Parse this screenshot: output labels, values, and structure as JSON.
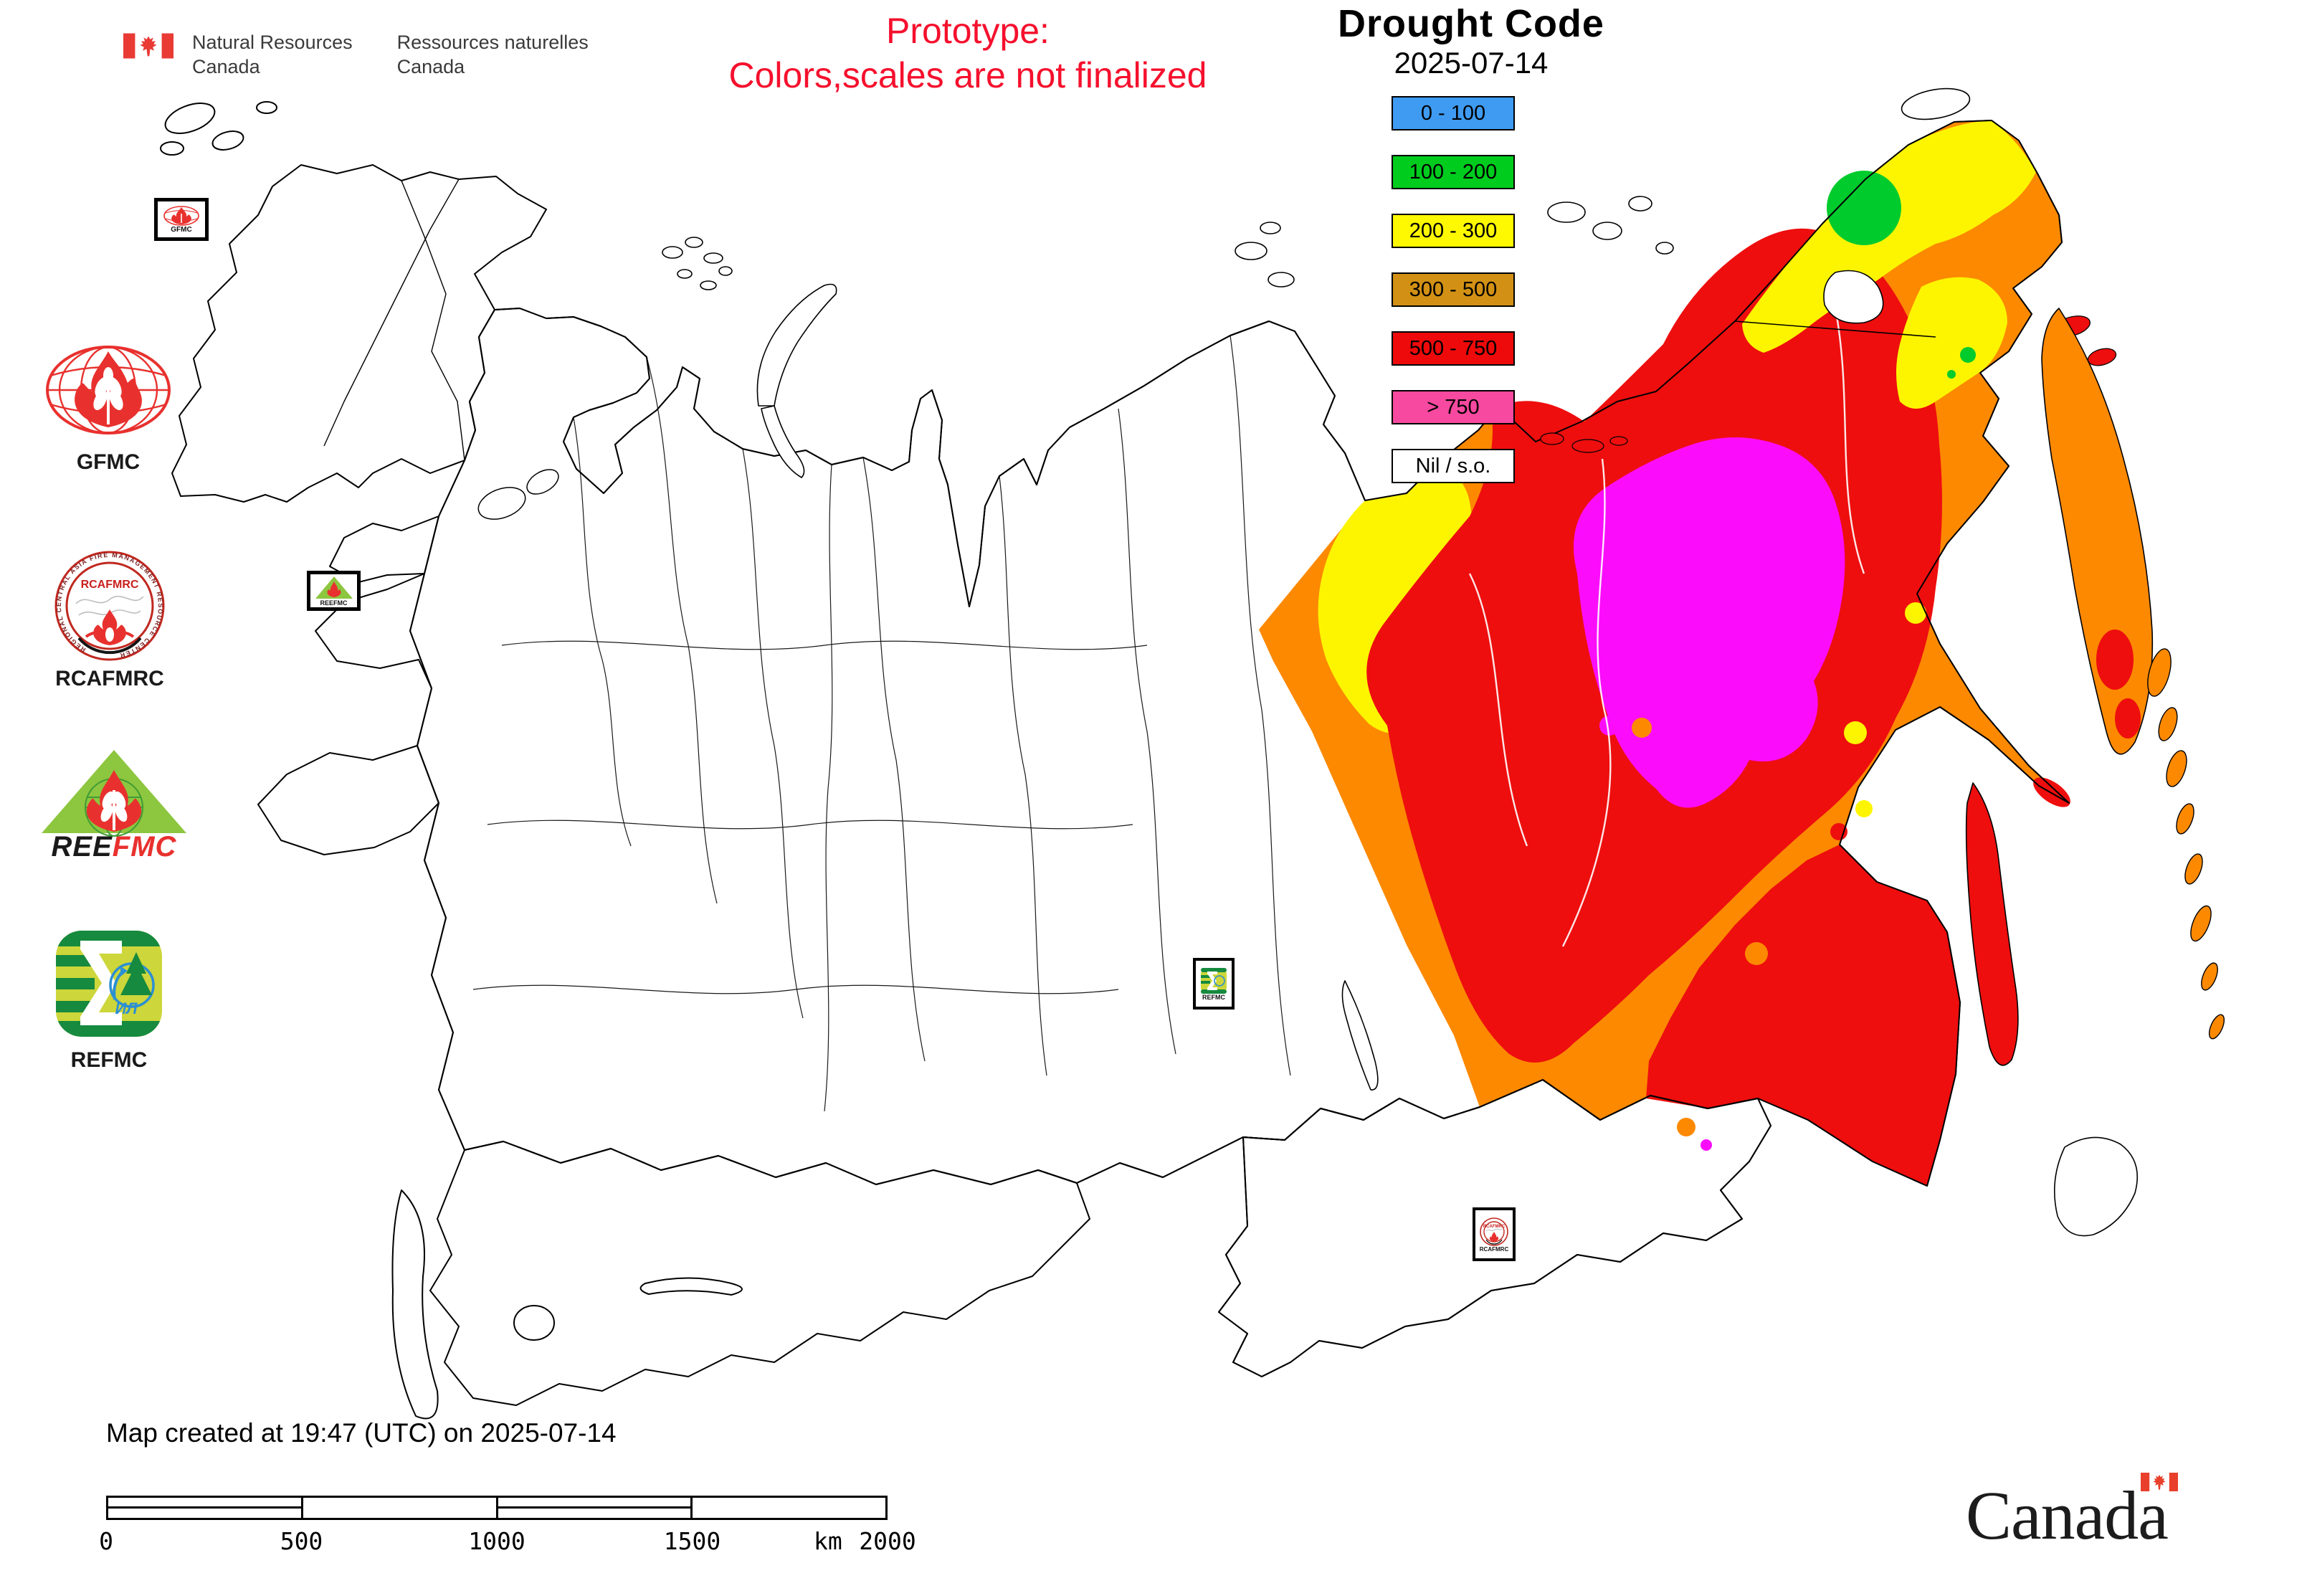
{
  "signature": {
    "flag_color": "#e93a34",
    "line1_en": "Natural Resources",
    "line2_en": "Canada",
    "line1_fr": "Ressources naturelles",
    "line2_fr": "Canada"
  },
  "prototype": {
    "line1": "Prototype:",
    "line2": "Colors,scales are not finalized",
    "color": "#f5102d"
  },
  "legend": {
    "title": "Drought Code",
    "date": "2025-07-14",
    "items": [
      {
        "label": "0 - 100",
        "color": "#3f9bf2"
      },
      {
        "label": "100 - 200",
        "color": "#00cc1e"
      },
      {
        "label": "200 - 300",
        "color": "#fef800"
      },
      {
        "label": "300 - 500",
        "color": "#d29114"
      },
      {
        "label": "500 - 750",
        "color": "#ee0a0a"
      },
      {
        "label": "> 750",
        "color": "#f7499f"
      },
      {
        "label": "Nil / s.o.",
        "color": "#ffffff"
      }
    ]
  },
  "sidebar_logos": {
    "gfmc": {
      "label": "GFMC"
    },
    "rcafmrc": {
      "label": "RCAFMRC",
      "seal_text": "RCAFMRC",
      "ring_text": "REGIONAL CENTRAL ASIA FIRE MANAGEMENT RESOURCE CENTER"
    },
    "reefmc": {
      "label_black": "REE",
      "label_red": "FMC"
    },
    "refmc": {
      "label": "REFMC",
      "inner_text": "ИЛ"
    }
  },
  "map": {
    "markers": [
      {
        "id": "gfmc",
        "label": "GFMC"
      },
      {
        "id": "reefmc",
        "label": "REEFMC"
      },
      {
        "id": "refmc",
        "label": "REFMC"
      },
      {
        "id": "rcafmrc",
        "label": "RCAFMRC"
      }
    ],
    "palette": {
      "land_nil": "#ffffff",
      "outline": "#000000",
      "map_orange_300_500": "#fd8900",
      "red_500_750": "#ee0e0e",
      "magenta_gt750": "#fb0dfc",
      "yellow_200_300": "#fdf500",
      "green_100_200": "#00cb2c"
    }
  },
  "footer": {
    "created_text": "Map created at 19:47 (UTC) on 2025-07-14",
    "scalebar": {
      "ticks": [
        "0",
        "500",
        "1000",
        "1500",
        "2000"
      ],
      "unit": "km"
    },
    "wordmark_text": "Canada"
  }
}
